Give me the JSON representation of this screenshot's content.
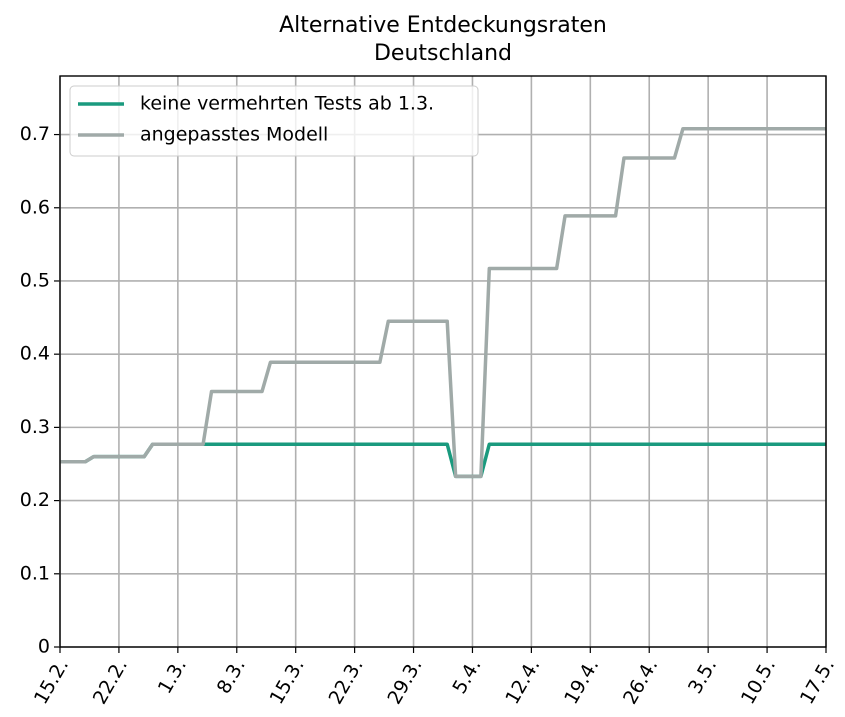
{
  "chart_data": {
    "type": "line",
    "title": "Alternative Entdeckungsraten",
    "subtitle": "Deutschland",
    "categories": [
      "15.2.",
      null,
      null,
      null,
      null,
      null,
      null,
      "22.2.",
      null,
      null,
      null,
      null,
      null,
      null,
      "1.3.",
      null,
      null,
      null,
      null,
      null,
      null,
      "8.3.",
      null,
      null,
      null,
      null,
      null,
      null,
      "15.3.",
      null,
      null,
      null,
      null,
      null,
      null,
      "22.3.",
      null,
      null,
      null,
      null,
      null,
      null,
      "29.3.",
      null,
      null,
      null,
      null,
      null,
      null,
      "5.4.",
      null,
      null,
      null,
      null,
      null,
      null,
      "12.4.",
      null,
      null,
      null,
      null,
      null,
      null,
      "19.4.",
      null,
      null,
      null,
      null,
      null,
      null,
      "26.4.",
      null,
      null,
      null,
      null,
      null,
      null,
      "3.5.",
      null,
      null,
      null,
      null,
      null,
      null,
      "10.5.",
      null,
      null,
      null,
      null,
      null,
      null,
      "17.5."
    ],
    "series": [
      {
        "name": "keine vermehrten Tests ab 1.3.",
        "color": "#1a9a7e",
        "values": [
          0.253,
          0.253,
          0.253,
          0.253,
          0.26,
          0.26,
          0.26,
          0.26,
          0.26,
          0.26,
          0.26,
          0.277,
          0.277,
          0.277,
          0.277,
          0.277,
          0.277,
          0.277,
          0.277,
          0.277,
          0.277,
          0.277,
          0.277,
          0.277,
          0.277,
          0.277,
          0.277,
          0.277,
          0.277,
          0.277,
          0.277,
          0.277,
          0.277,
          0.277,
          0.277,
          0.277,
          0.277,
          0.277,
          0.277,
          0.277,
          0.277,
          0.277,
          0.277,
          0.277,
          0.277,
          0.277,
          0.277,
          0.233,
          0.233,
          0.233,
          0.233,
          0.277,
          0.277,
          0.277,
          0.277,
          0.277,
          0.277,
          0.277,
          0.277,
          0.277,
          0.277,
          0.277,
          0.277,
          0.277,
          0.277,
          0.277,
          0.277,
          0.277,
          0.277,
          0.277,
          0.277,
          0.277,
          0.277,
          0.277,
          0.277,
          0.277,
          0.277,
          0.277,
          0.277,
          0.277,
          0.277,
          0.277,
          0.277,
          0.277,
          0.277,
          0.277,
          0.277,
          0.277,
          0.277,
          0.277,
          0.277,
          0.277
        ]
      },
      {
        "name": "angepasstes Modell",
        "color": "#a0aaa8",
        "values": [
          0.253,
          0.253,
          0.253,
          0.253,
          0.26,
          0.26,
          0.26,
          0.26,
          0.26,
          0.26,
          0.26,
          0.277,
          0.277,
          0.277,
          0.277,
          0.277,
          0.277,
          0.277,
          0.349,
          0.349,
          0.349,
          0.349,
          0.349,
          0.349,
          0.349,
          0.389,
          0.389,
          0.389,
          0.389,
          0.389,
          0.389,
          0.389,
          0.389,
          0.389,
          0.389,
          0.389,
          0.389,
          0.389,
          0.389,
          0.445,
          0.445,
          0.445,
          0.445,
          0.445,
          0.445,
          0.445,
          0.445,
          0.233,
          0.233,
          0.233,
          0.233,
          0.517,
          0.517,
          0.517,
          0.517,
          0.517,
          0.517,
          0.517,
          0.517,
          0.517,
          0.589,
          0.589,
          0.589,
          0.589,
          0.589,
          0.589,
          0.589,
          0.668,
          0.668,
          0.668,
          0.668,
          0.668,
          0.668,
          0.668,
          0.708,
          0.708,
          0.708,
          0.708,
          0.708,
          0.708,
          0.708,
          0.708,
          0.708,
          0.708,
          0.708,
          0.708,
          0.708,
          0.708,
          0.708,
          0.708,
          0.708,
          0.708
        ]
      }
    ],
    "ylim": [
      0,
      0.78
    ],
    "yticks": [
      0.0,
      0.1,
      0.2,
      0.3,
      0.4,
      0.5,
      0.6,
      0.7
    ],
    "grid": true,
    "legend": "upper left"
  }
}
